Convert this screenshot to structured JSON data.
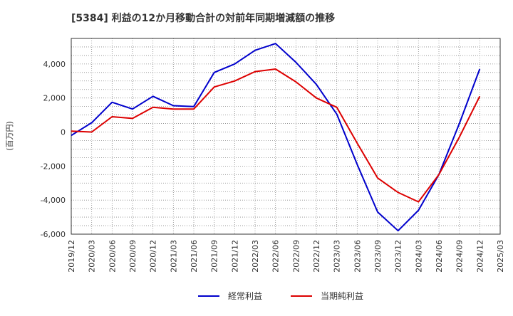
{
  "chart_data": {
    "type": "line",
    "title": "[5384]  利益の12か月移動合計の対前年同期増減額の推移",
    "xlabel": "",
    "ylabel": "(百万円)",
    "ylim": [
      -6000,
      5500
    ],
    "yticks": [
      -6000,
      -4000,
      -2000,
      0,
      2000,
      4000
    ],
    "ytick_labels": [
      "-6,000",
      "-4,000",
      "-2,000",
      "0",
      "2,000",
      "4,000"
    ],
    "xticks": [
      "2019/12",
      "2020/03",
      "2020/06",
      "2020/09",
      "2020/12",
      "2021/03",
      "2021/06",
      "2021/09",
      "2021/12",
      "2022/03",
      "2022/06",
      "2022/09",
      "2022/12",
      "2023/03",
      "2023/06",
      "2023/09",
      "2023/12",
      "2024/03",
      "2024/06",
      "2024/09",
      "2024/12",
      "2025/03"
    ],
    "grid": true,
    "legend_position": "bottom",
    "series": [
      {
        "name": "経常利益",
        "color": "#0000cc",
        "values": [
          -200,
          550,
          1750,
          1350,
          2100,
          1550,
          1500,
          3500,
          4000,
          4800,
          5200,
          4100,
          2800,
          1050,
          -1900,
          -4700,
          -5800,
          -4600,
          -2500,
          500,
          3700
        ]
      },
      {
        "name": "当期純利益",
        "color": "#dd0000",
        "values": [
          50,
          0,
          900,
          800,
          1450,
          1350,
          1350,
          2650,
          3000,
          3550,
          3700,
          2950,
          2000,
          1450,
          -650,
          -2700,
          -3550,
          -4100,
          -2500,
          -300,
          2100
        ]
      }
    ]
  }
}
